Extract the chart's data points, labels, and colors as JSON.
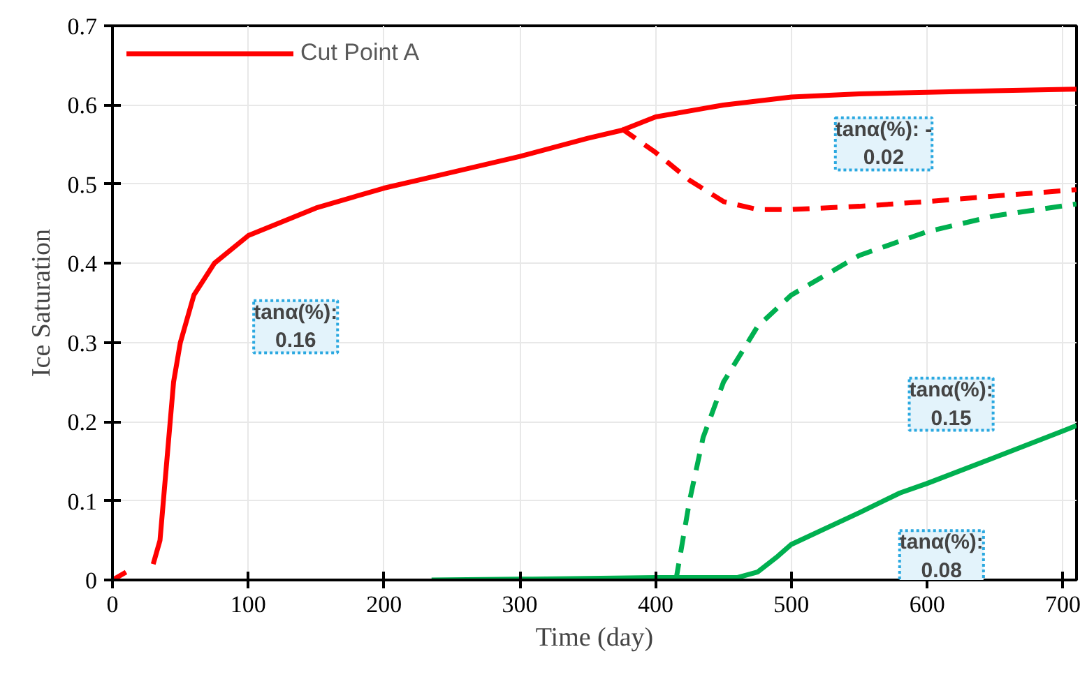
{
  "chart_data": {
    "type": "line",
    "xlabel": "Time (day)",
    "ylabel": "Ice Saturation",
    "xlim": [
      0,
      710
    ],
    "ylim": [
      0,
      0.7
    ],
    "xticks": [
      0,
      100,
      200,
      300,
      400,
      500,
      600,
      700
    ],
    "yticks": [
      0,
      0.1,
      0.2,
      0.3,
      0.4,
      0.5,
      0.6,
      0.7
    ],
    "grid": true,
    "legend": "top left",
    "series": [
      {
        "name": "Cut Point A",
        "color": "#ff0000",
        "line_style": "solid",
        "x": [
          0,
          10,
          20,
          30,
          35,
          40,
          45,
          50,
          60,
          75,
          100,
          150,
          200,
          250,
          300,
          350,
          375,
          400,
          450,
          500,
          550,
          600,
          650,
          710
        ],
        "values": [
          0,
          0.01,
          null,
          0.02,
          0.05,
          0.15,
          0.25,
          0.3,
          0.36,
          0.4,
          0.435,
          0.47,
          0.495,
          0.515,
          0.535,
          0.558,
          0.568,
          0.585,
          0.6,
          0.61,
          0.614,
          0.616,
          0.618,
          0.62
        ]
      },
      {
        "color": "#ff0000",
        "line_style": "dashed",
        "x": [
          375,
          400,
          425,
          450,
          475,
          500,
          550,
          600,
          650,
          710
        ],
        "values": [
          0.57,
          0.54,
          0.505,
          0.478,
          0.468,
          0.468,
          0.472,
          0.478,
          0.485,
          0.493
        ]
      },
      {
        "color": "#00b050",
        "line_style": "solid",
        "x": [
          235,
          300,
          400,
          460,
          475,
          490,
          500,
          550,
          580,
          600,
          650,
          710
        ],
        "values": [
          0,
          0.001,
          0.003,
          0.003,
          0.01,
          0.03,
          0.045,
          0.085,
          0.11,
          0.122,
          0.155,
          0.195
        ]
      },
      {
        "color": "#00b050",
        "line_style": "dashed",
        "x": [
          415,
          418,
          425,
          435,
          450,
          475,
          500,
          550,
          600,
          650,
          710
        ],
        "values": [
          0,
          0.03,
          0.1,
          0.18,
          0.25,
          0.32,
          0.36,
          0.41,
          0.44,
          0.46,
          0.475
        ]
      }
    ],
    "annotations": [
      "tanα(%):\n0.16",
      "tanα(%): -\n0.02",
      "tanα(%):\n0.15",
      "tanα(%):\n0.08"
    ]
  }
}
